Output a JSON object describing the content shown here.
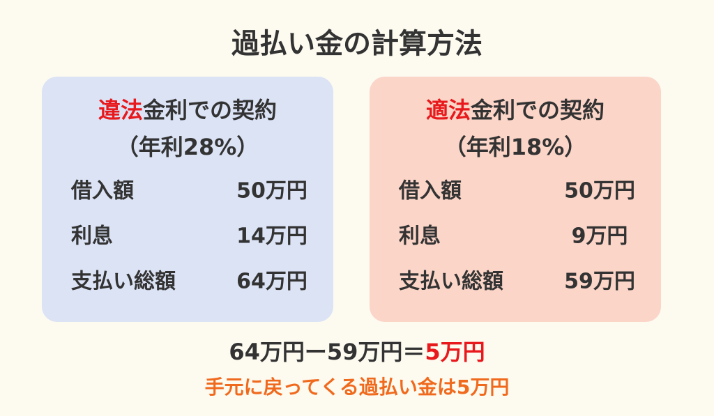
{
  "title": "過払い金の計算方法",
  "cards": [
    {
      "heading_highlight": "違法",
      "heading": "金利での契約",
      "subheading": "（年利28%）",
      "rows": [
        [
          "借入額",
          "50万円"
        ],
        [
          "利息",
          "14万円"
        ],
        [
          "支払い総額",
          "64万円"
        ]
      ]
    },
    {
      "heading_highlight": "適法",
      "heading": "金利での契約",
      "subheading": "（年利18%）",
      "rows": [
        [
          "借入額",
          "50万円"
        ],
        [
          "利息",
          "9万円"
        ],
        [
          "支払い総額",
          "59万円"
        ]
      ]
    }
  ],
  "formula": {
    "expression": "64万円ー59万円＝",
    "result": "5万円"
  },
  "conclusion": "手元に戻ってくる過払い金は5万円"
}
